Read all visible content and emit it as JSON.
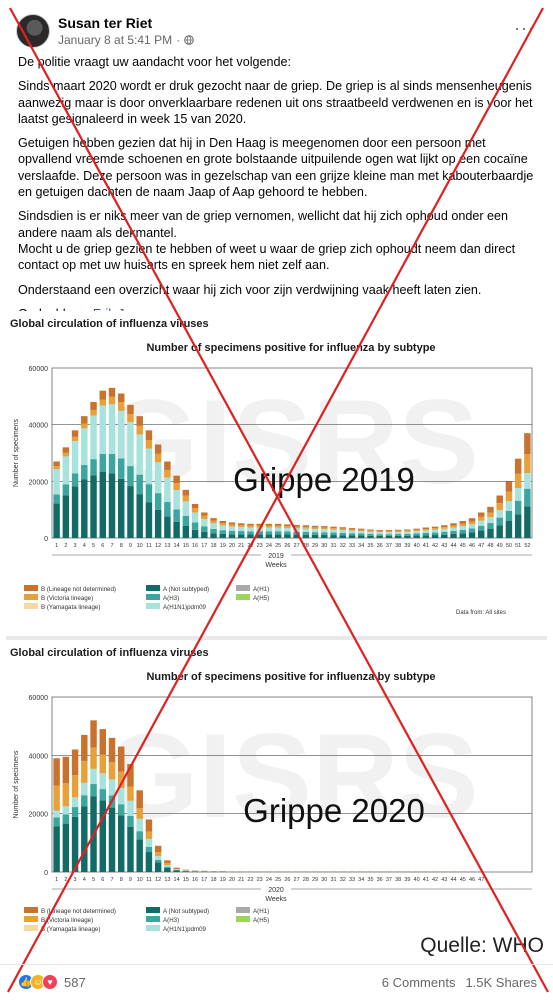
{
  "post": {
    "author": "Susan ter Riet",
    "timestamp": "January 8 at 5:41 PM",
    "separator": "·",
    "privacy_icon": "globe-icon",
    "more_icon": "···",
    "paragraphs": [
      "De politie vraagt uw aandacht voor het volgende:",
      "Sinds maart 2020 wordt er druk gezocht naar de griep. De griep is al sinds mensenheugenis aanwezig maar is door onverklaarbare redenen uit ons straatbeeld verdwenen en is voor het laatst gesignaleerd in week 15 van 2020.",
      "Getuigen hebben gezien dat hij in Den Haag is meegenomen door een persoon met opvallend vreemde schoenen en grote bolstaande uitpuilende ogen wat lijkt op een cocaïne verslaafde. Deze persoon was in gezelschap van een grijze kleine man met kabouterbaardje en getuigen dachten de naam Jaap of Aap gehoord te hebben.",
      "Sindsdien is er niks meer van de griep vernomen, wellicht dat hij zich ophoud onder een andere naam als dekmantel.\nMocht u de griep gezien te hebben of weet u waar de griep zich ophoudt neem dan direct contact op met uw huisarts en spreek hem niet zelf aan.",
      "Onderstaand een overzicht waar hij zich voor zijn verdwijning vaak heeft laten zien."
    ],
    "shared_from_label": "Gedeeld van",
    "shared_from_name": "Erik Janssen"
  },
  "footer": {
    "reaction_icons": [
      "like-icon",
      "haha-icon",
      "love-icon"
    ],
    "reaction_count": "587",
    "comments": "6 Comments",
    "shares": "1.5K Shares"
  },
  "colors": {
    "b_lineage_not_determined": "#c8722e",
    "b_victoria": "#e8a13a",
    "b_yamagata": "#f6d9a0",
    "a_not_subtyped": "#136b67",
    "a_h3": "#3ba6a0",
    "a_h1n1pdm09": "#a8e2dc",
    "a_h1": "#a9a9a9",
    "a_h5": "#9bd65a",
    "cross": "#e02020"
  },
  "chart_data": [
    {
      "type": "bar",
      "stacked": true,
      "title": "Global circulation of influenza viruses",
      "subtitle": "Number of specimens positive for influenza by subtype",
      "overlay_text": "Grippe 2019",
      "watermark": "GISRS",
      "xlabel": "Weeks",
      "ylabel": "Number of specimens",
      "year_label": "2019",
      "ylim": [
        0,
        60000
      ],
      "yticks": [
        0,
        20000,
        40000,
        60000
      ],
      "categories": [
        "1",
        "2",
        "3",
        "4",
        "5",
        "6",
        "7",
        "8",
        "9",
        "10",
        "11",
        "12",
        "13",
        "14",
        "15",
        "16",
        "17",
        "18",
        "19",
        "20",
        "21",
        "22",
        "23",
        "24",
        "25",
        "26",
        "27",
        "28",
        "29",
        "30",
        "31",
        "32",
        "33",
        "34",
        "35",
        "36",
        "37",
        "38",
        "39",
        "40",
        "41",
        "42",
        "43",
        "44",
        "45",
        "46",
        "47",
        "48",
        "49",
        "50",
        "51",
        "52"
      ],
      "totals": [
        27000,
        32000,
        38000,
        43000,
        48000,
        52000,
        53000,
        51000,
        47000,
        43000,
        38000,
        33000,
        27000,
        22000,
        17000,
        12000,
        9000,
        7000,
        6000,
        5500,
        5200,
        5000,
        5000,
        5000,
        5000,
        4800,
        4600,
        4500,
        4300,
        4200,
        4000,
        3800,
        3500,
        3300,
        3000,
        2800,
        2800,
        2900,
        3000,
        3300,
        3700,
        4000,
        4500,
        5200,
        6000,
        7000,
        9000,
        11000,
        15000,
        20000,
        28000,
        37000
      ],
      "shares": {
        "a_not_subtyped": [
          0.45,
          0.47,
          0.48,
          0.48,
          0.46,
          0.45,
          0.43,
          0.41,
          0.39,
          0.36,
          0.33,
          0.3,
          0.28,
          0.26,
          0.25,
          0.24,
          0.24,
          0.24,
          0.24,
          0.24,
          0.25,
          0.25,
          0.26,
          0.26,
          0.26,
          0.26,
          0.26,
          0.26,
          0.26,
          0.26,
          0.26,
          0.26,
          0.26,
          0.26,
          0.26,
          0.26,
          0.26,
          0.26,
          0.26,
          0.26,
          0.26,
          0.26,
          0.26,
          0.27,
          0.28,
          0.28,
          0.29,
          0.3,
          0.3,
          0.3,
          0.3,
          0.3
        ],
        "a_h3": [
          0.12,
          0.12,
          0.12,
          0.12,
          0.12,
          0.12,
          0.13,
          0.14,
          0.15,
          0.16,
          0.17,
          0.18,
          0.19,
          0.2,
          0.21,
          0.22,
          0.22,
          0.22,
          0.22,
          0.22,
          0.22,
          0.22,
          0.22,
          0.22,
          0.22,
          0.22,
          0.22,
          0.22,
          0.22,
          0.22,
          0.22,
          0.22,
          0.22,
          0.22,
          0.22,
          0.22,
          0.22,
          0.22,
          0.22,
          0.22,
          0.22,
          0.22,
          0.22,
          0.21,
          0.2,
          0.2,
          0.19,
          0.18,
          0.18,
          0.18,
          0.17,
          0.17
        ],
        "a_h1n1pdm09": [
          0.33,
          0.31,
          0.3,
          0.3,
          0.32,
          0.33,
          0.33,
          0.33,
          0.33,
          0.33,
          0.33,
          0.33,
          0.32,
          0.31,
          0.3,
          0.29,
          0.28,
          0.28,
          0.28,
          0.28,
          0.27,
          0.27,
          0.26,
          0.26,
          0.26,
          0.26,
          0.26,
          0.26,
          0.26,
          0.26,
          0.26,
          0.26,
          0.26,
          0.26,
          0.26,
          0.26,
          0.26,
          0.26,
          0.26,
          0.26,
          0.25,
          0.25,
          0.24,
          0.23,
          0.22,
          0.21,
          0.2,
          0.19,
          0.18,
          0.17,
          0.16,
          0.15
        ],
        "b_victoria": [
          0.04,
          0.04,
          0.04,
          0.04,
          0.04,
          0.04,
          0.05,
          0.06,
          0.06,
          0.07,
          0.08,
          0.09,
          0.1,
          0.11,
          0.12,
          0.13,
          0.13,
          0.13,
          0.13,
          0.13,
          0.13,
          0.13,
          0.13,
          0.13,
          0.13,
          0.13,
          0.13,
          0.13,
          0.13,
          0.13,
          0.13,
          0.13,
          0.13,
          0.13,
          0.13,
          0.13,
          0.13,
          0.13,
          0.13,
          0.13,
          0.13,
          0.13,
          0.13,
          0.13,
          0.14,
          0.14,
          0.15,
          0.15,
          0.16,
          0.17,
          0.18,
          0.18
        ],
        "b_lineage_not_determined": [
          0.06,
          0.06,
          0.06,
          0.06,
          0.06,
          0.06,
          0.06,
          0.06,
          0.07,
          0.08,
          0.09,
          0.1,
          0.11,
          0.12,
          0.12,
          0.12,
          0.13,
          0.13,
          0.13,
          0.13,
          0.13,
          0.13,
          0.13,
          0.13,
          0.13,
          0.13,
          0.13,
          0.13,
          0.13,
          0.13,
          0.13,
          0.13,
          0.13,
          0.13,
          0.13,
          0.13,
          0.13,
          0.13,
          0.13,
          0.13,
          0.14,
          0.14,
          0.15,
          0.16,
          0.16,
          0.17,
          0.17,
          0.18,
          0.18,
          0.18,
          0.19,
          0.2
        ]
      },
      "legend": [
        "B (Lineage not determined)",
        "B (Victoria lineage)",
        "B (Yamagata lineage)",
        "A (Not subtyped)",
        "A(H3)",
        "A(H1N1)pdm09",
        "A(H1)",
        "A(H5)"
      ],
      "source": "Data from: All sites",
      "grid": true
    },
    {
      "type": "bar",
      "stacked": true,
      "title": "Global circulation of influenza viruses",
      "subtitle": "Number of specimens positive for influenza by subtype",
      "overlay_text": "Grippe 2020",
      "watermark": "GISRS",
      "xlabel": "Weeks",
      "ylabel": "Number of specimens",
      "year_label": "2020",
      "ylim": [
        0,
        60000
      ],
      "yticks": [
        0,
        20000,
        40000,
        60000
      ],
      "categories": [
        "1",
        "2",
        "3",
        "4",
        "5",
        "6",
        "7",
        "8",
        "9",
        "10",
        "11",
        "12",
        "13",
        "14",
        "15",
        "16",
        "17",
        "18",
        "19",
        "20",
        "21",
        "22",
        "23",
        "24",
        "25",
        "26",
        "27",
        "28",
        "29",
        "30",
        "31",
        "32",
        "33",
        "34",
        "35",
        "36",
        "37",
        "38",
        "39",
        "40",
        "41",
        "42",
        "43",
        "44",
        "45",
        "46",
        "47"
      ],
      "totals": [
        39000,
        39500,
        42000,
        47000,
        52000,
        49000,
        46000,
        43000,
        37000,
        28000,
        18000,
        9000,
        4000,
        1500,
        800,
        500,
        400,
        300,
        300,
        200,
        200,
        200,
        200,
        200,
        200,
        200,
        200,
        200,
        200,
        200,
        200,
        200,
        200,
        200,
        200,
        200,
        200,
        200,
        200,
        200,
        200,
        200,
        200,
        200,
        200,
        200,
        200
      ],
      "shares": {
        "a_not_subtyped": [
          0.4,
          0.42,
          0.45,
          0.48,
          0.5,
          0.5,
          0.48,
          0.45,
          0.42,
          0.4,
          0.38,
          0.36,
          0.35,
          0.35,
          0.35,
          0.35,
          0.35,
          0.35,
          0.35,
          0.35,
          0.35,
          0.35,
          0.35,
          0.35,
          0.35,
          0.35,
          0.35,
          0.35,
          0.35,
          0.35,
          0.35,
          0.35,
          0.35,
          0.35,
          0.35,
          0.35,
          0.35,
          0.35,
          0.35,
          0.35,
          0.35,
          0.35,
          0.35,
          0.35,
          0.35,
          0.35,
          0.35
        ],
        "a_h3": [
          0.08,
          0.08,
          0.08,
          0.08,
          0.08,
          0.08,
          0.09,
          0.09,
          0.1,
          0.1,
          0.1,
          0.1,
          0.1,
          0.1,
          0.1,
          0.1,
          0.1,
          0.1,
          0.1,
          0.1,
          0.1,
          0.1,
          0.1,
          0.1,
          0.1,
          0.1,
          0.1,
          0.1,
          0.1,
          0.1,
          0.1,
          0.1,
          0.1,
          0.1,
          0.1,
          0.1,
          0.1,
          0.1,
          0.1,
          0.1,
          0.1,
          0.1,
          0.1,
          0.1,
          0.1,
          0.1,
          0.1
        ],
        "a_h1n1pdm09": [
          0.06,
          0.07,
          0.08,
          0.09,
          0.1,
          0.11,
          0.12,
          0.13,
          0.14,
          0.15,
          0.15,
          0.15,
          0.15,
          0.15,
          0.15,
          0.15,
          0.15,
          0.15,
          0.15,
          0.15,
          0.15,
          0.15,
          0.15,
          0.15,
          0.15,
          0.15,
          0.15,
          0.15,
          0.15,
          0.15,
          0.15,
          0.15,
          0.15,
          0.15,
          0.15,
          0.15,
          0.15,
          0.15,
          0.15,
          0.15,
          0.15,
          0.15,
          0.15,
          0.15,
          0.15,
          0.15,
          0.15
        ],
        "b_victoria": [
          0.22,
          0.2,
          0.18,
          0.16,
          0.14,
          0.13,
          0.13,
          0.13,
          0.13,
          0.13,
          0.14,
          0.15,
          0.15,
          0.15,
          0.15,
          0.15,
          0.15,
          0.15,
          0.15,
          0.15,
          0.15,
          0.15,
          0.15,
          0.15,
          0.15,
          0.15,
          0.15,
          0.15,
          0.15,
          0.15,
          0.15,
          0.15,
          0.15,
          0.15,
          0.15,
          0.15,
          0.15,
          0.15,
          0.15,
          0.15,
          0.15,
          0.15,
          0.15,
          0.15,
          0.15,
          0.15,
          0.15
        ],
        "b_lineage_not_determined": [
          0.24,
          0.23,
          0.21,
          0.19,
          0.18,
          0.18,
          0.18,
          0.2,
          0.21,
          0.22,
          0.23,
          0.24,
          0.25,
          0.25,
          0.25,
          0.25,
          0.25,
          0.25,
          0.25,
          0.25,
          0.25,
          0.25,
          0.25,
          0.25,
          0.25,
          0.25,
          0.25,
          0.25,
          0.25,
          0.25,
          0.25,
          0.25,
          0.25,
          0.25,
          0.25,
          0.25,
          0.25,
          0.25,
          0.25,
          0.25,
          0.25,
          0.25,
          0.25,
          0.25,
          0.25,
          0.25,
          0.25
        ]
      },
      "legend": [
        "B (Lineage not determined)",
        "B (Victoria lineage)",
        "B (Yamagata lineage)",
        "A (Not subtyped)",
        "A(H3)",
        "A(H1N1)pdm09",
        "A(H1)",
        "A(H5)"
      ],
      "corner_text": "Quelle: WHO",
      "grid": true
    }
  ]
}
